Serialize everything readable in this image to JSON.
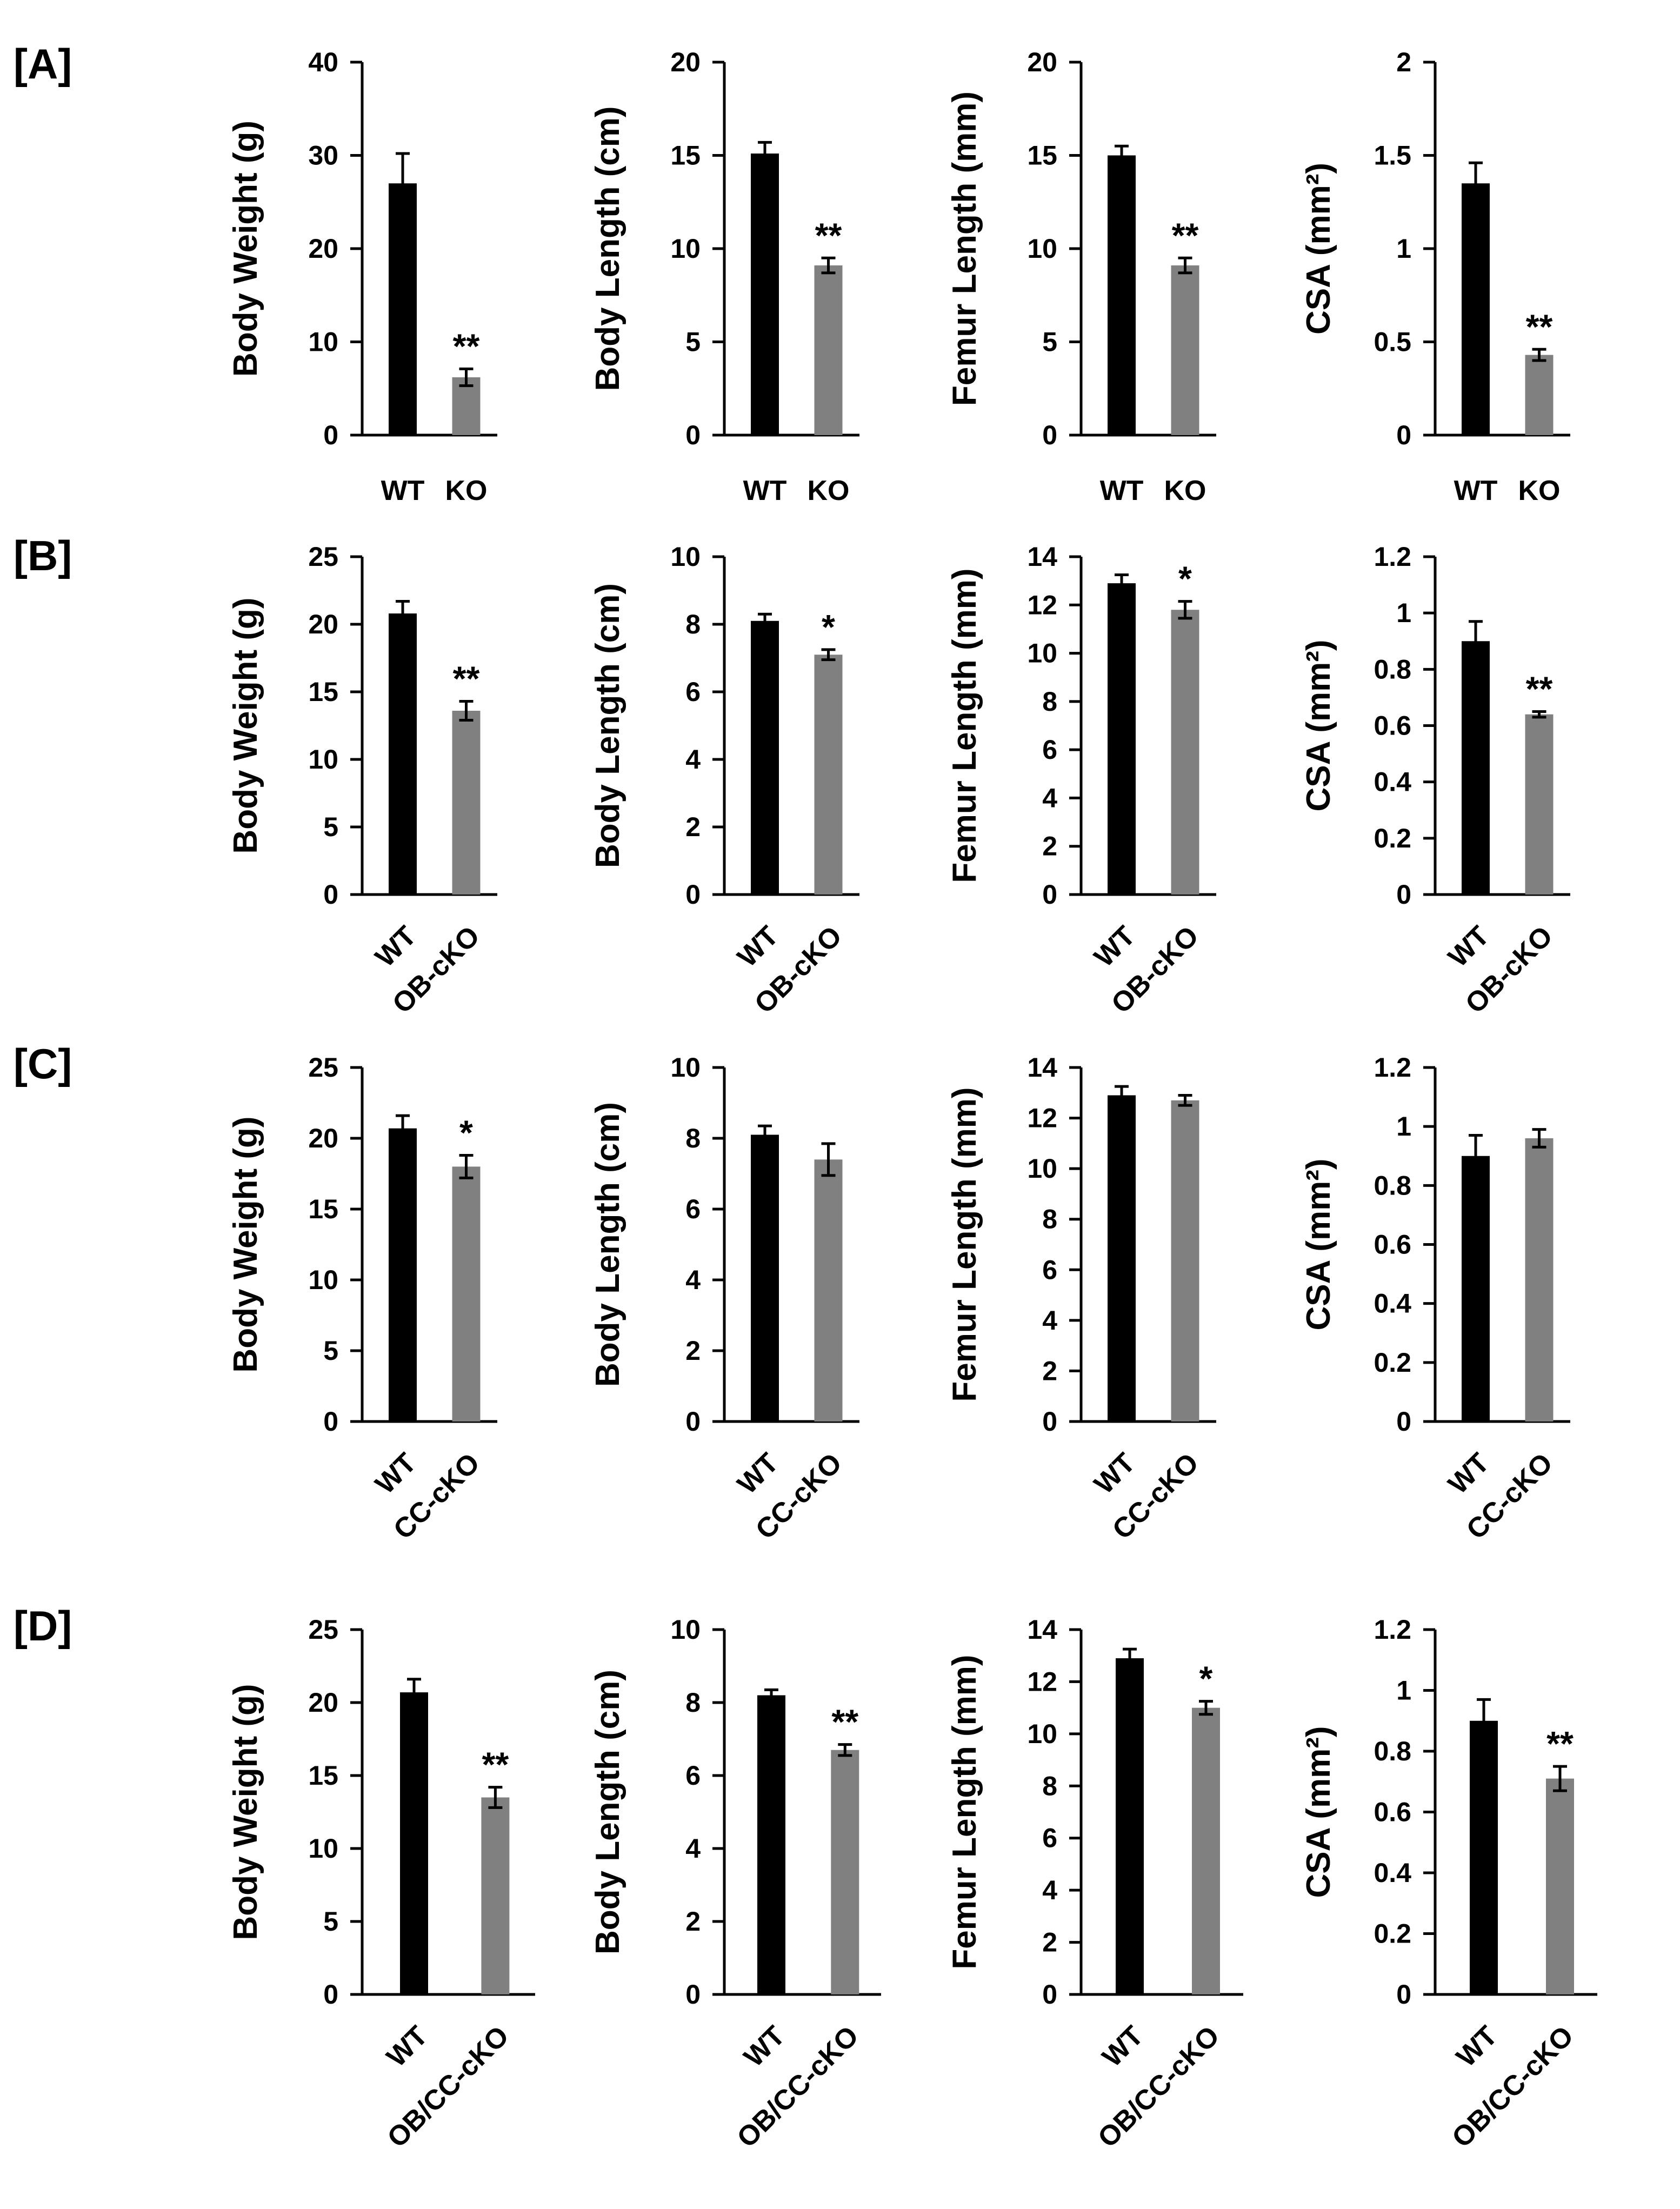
{
  "colors": {
    "wt": "#000000",
    "mutant": "#808080",
    "axis": "#000000"
  },
  "chart_data": [
    {
      "panel": "[A]",
      "type": "bar",
      "categories": [
        "WT",
        "KO"
      ],
      "charts": [
        {
          "ylabel": "Body Weight (g)",
          "ylim": [
            0,
            40
          ],
          "ticks": [
            "0",
            "10",
            "20",
            "30",
            "40"
          ],
          "values": [
            27,
            6.2
          ],
          "errors": [
            3.2,
            0.9
          ],
          "significance": [
            "",
            "**"
          ]
        },
        {
          "ylabel": "Body Length (cm)",
          "ylim": [
            0,
            20
          ],
          "ticks": [
            "0",
            "5",
            "10",
            "15",
            "20"
          ],
          "values": [
            15.1,
            9.1
          ],
          "errors": [
            0.6,
            0.4
          ],
          "significance": [
            "",
            "**"
          ]
        },
        {
          "ylabel": "Femur Length (mm)",
          "ylim": [
            0,
            20
          ],
          "ticks": [
            "0",
            "5",
            "10",
            "15",
            "20"
          ],
          "values": [
            15.0,
            9.1
          ],
          "errors": [
            0.5,
            0.4
          ],
          "significance": [
            "",
            "**"
          ]
        },
        {
          "ylabel": "CSA (mm²)",
          "ylim": [
            0,
            2
          ],
          "ticks": [
            "0",
            "0.5",
            "1",
            "1.5",
            "2"
          ],
          "values": [
            1.35,
            0.43
          ],
          "errors": [
            0.11,
            0.03
          ],
          "significance": [
            "",
            "**"
          ]
        }
      ]
    },
    {
      "panel": "[B]",
      "type": "bar",
      "categories": [
        "WT",
        "OB-cKO"
      ],
      "charts": [
        {
          "ylabel": "Body Weight (g)",
          "ylim": [
            0,
            25
          ],
          "ticks": [
            "0",
            "5",
            "10",
            "15",
            "20",
            "25"
          ],
          "values": [
            20.8,
            13.6
          ],
          "errors": [
            0.9,
            0.7
          ],
          "significance": [
            "",
            "**"
          ]
        },
        {
          "ylabel": "Body Length (cm)",
          "ylim": [
            0,
            10
          ],
          "ticks": [
            "0",
            "2",
            "4",
            "6",
            "8",
            "10"
          ],
          "values": [
            8.1,
            7.1
          ],
          "errors": [
            0.2,
            0.15
          ],
          "significance": [
            "",
            "*"
          ]
        },
        {
          "ylabel": "Femur Length (mm)",
          "ylim": [
            0,
            14
          ],
          "ticks": [
            "0",
            "2",
            "4",
            "6",
            "8",
            "10",
            "12",
            "14"
          ],
          "values": [
            12.9,
            11.8
          ],
          "errors": [
            0.35,
            0.35
          ],
          "significance": [
            "",
            "*"
          ]
        },
        {
          "ylabel": "CSA (mm²)",
          "ylim": [
            0,
            1.2
          ],
          "ticks": [
            "0",
            "0.2",
            "0.4",
            "0.6",
            "0.8",
            "1",
            "1.2"
          ],
          "values": [
            0.9,
            0.64
          ],
          "errors": [
            0.07,
            0.01
          ],
          "significance": [
            "",
            "**"
          ]
        }
      ]
    },
    {
      "panel": "[C]",
      "type": "bar",
      "categories": [
        "WT",
        "CC-cKO"
      ],
      "charts": [
        {
          "ylabel": "Body Weight (g)",
          "ylim": [
            0,
            25
          ],
          "ticks": [
            "0",
            "5",
            "10",
            "15",
            "20",
            "25"
          ],
          "values": [
            20.7,
            18.0
          ],
          "errors": [
            0.9,
            0.8
          ],
          "significance": [
            "",
            "*"
          ]
        },
        {
          "ylabel": "Body Length (cm)",
          "ylim": [
            0,
            10
          ],
          "ticks": [
            "0",
            "2",
            "4",
            "6",
            "8",
            "10"
          ],
          "values": [
            8.1,
            7.4
          ],
          "errors": [
            0.25,
            0.45
          ],
          "significance": [
            "",
            ""
          ]
        },
        {
          "ylabel": "Femur Length (mm)",
          "ylim": [
            0,
            14
          ],
          "ticks": [
            "0",
            "2",
            "4",
            "6",
            "8",
            "10",
            "12",
            "14"
          ],
          "values": [
            12.9,
            12.7
          ],
          "errors": [
            0.35,
            0.2
          ],
          "significance": [
            "",
            ""
          ]
        },
        {
          "ylabel": "CSA (mm²)",
          "ylim": [
            0,
            1.2
          ],
          "ticks": [
            "0",
            "0.2",
            "0.4",
            "0.6",
            "0.8",
            "1",
            "1.2"
          ],
          "values": [
            0.9,
            0.96
          ],
          "errors": [
            0.07,
            0.03
          ],
          "significance": [
            "",
            ""
          ]
        }
      ]
    },
    {
      "panel": "[D]",
      "type": "bar",
      "categories": [
        "WT",
        "OB/CC-cKO"
      ],
      "charts": [
        {
          "ylabel": "Body Weight (g)",
          "ylim": [
            0,
            25
          ],
          "ticks": [
            "0",
            "5",
            "10",
            "15",
            "20",
            "25"
          ],
          "values": [
            20.7,
            13.5
          ],
          "errors": [
            0.9,
            0.7
          ],
          "significance": [
            "",
            "**"
          ]
        },
        {
          "ylabel": "Body Length (cm)",
          "ylim": [
            0,
            10
          ],
          "ticks": [
            "0",
            "2",
            "4",
            "6",
            "8",
            "10"
          ],
          "values": [
            8.2,
            6.7
          ],
          "errors": [
            0.15,
            0.15
          ],
          "significance": [
            "",
            "**"
          ]
        },
        {
          "ylabel": "Femur Length (mm)",
          "ylim": [
            0,
            14
          ],
          "ticks": [
            "0",
            "2",
            "4",
            "6",
            "8",
            "10",
            "12",
            "14"
          ],
          "values": [
            12.9,
            11.0
          ],
          "errors": [
            0.35,
            0.25
          ],
          "significance": [
            "",
            "*"
          ]
        },
        {
          "ylabel": "CSA (mm²)",
          "ylim": [
            0,
            1.2
          ],
          "ticks": [
            "0",
            "0.2",
            "0.4",
            "0.6",
            "0.8",
            "1",
            "1.2"
          ],
          "values": [
            0.9,
            0.71
          ],
          "errors": [
            0.07,
            0.04
          ],
          "significance": [
            "",
            "**"
          ]
        }
      ]
    }
  ]
}
